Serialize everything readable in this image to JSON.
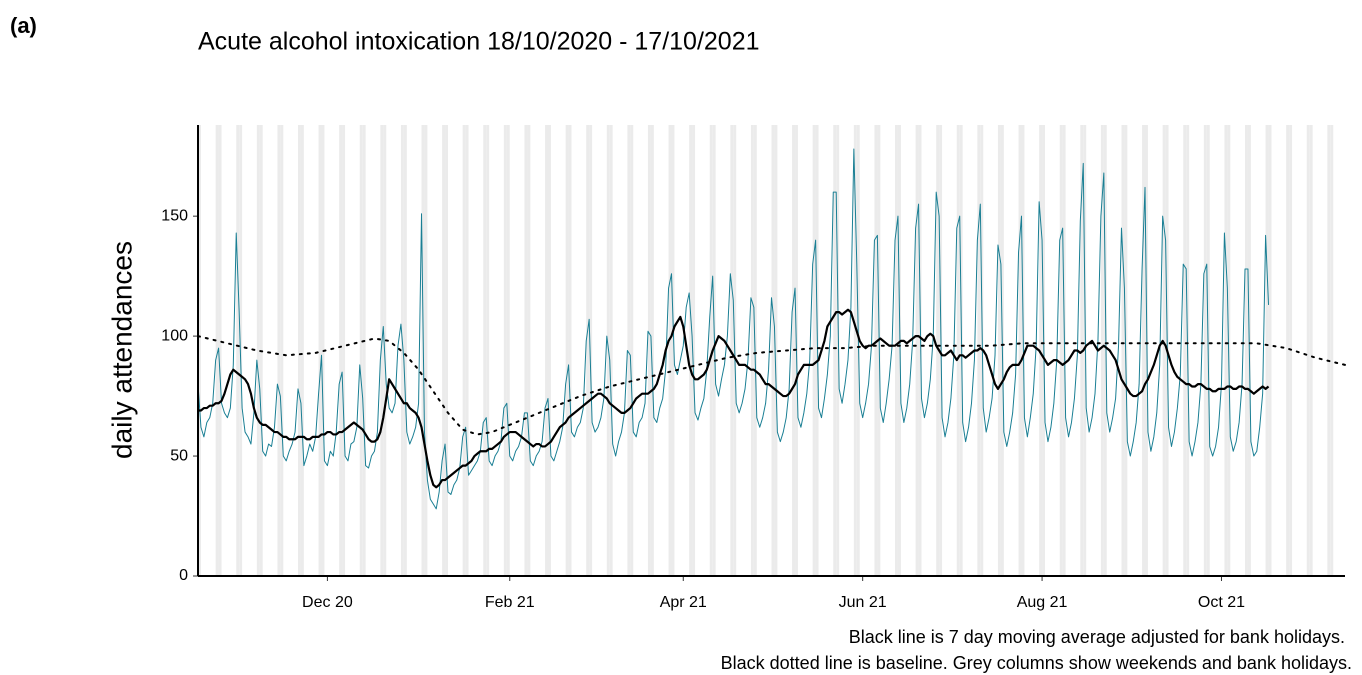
{
  "panel_label": "(a)",
  "chart_data": {
    "type": "line",
    "title": "Acute alcohol intoxication 18/10/2020 - 17/10/2021",
    "y_label": "daily attendances",
    "notes": [
      "Black line is 7 day moving average adjusted for bank holidays.",
      "Black dotted line is baseline. Grey columns show weekends and bank holidays."
    ],
    "weekend_shading": true,
    "xlim": [
      0,
      390
    ],
    "xticks": [
      {
        "value": 44,
        "label": "Dec 20"
      },
      {
        "value": 106,
        "label": "Feb 21"
      },
      {
        "value": 165,
        "label": "Apr 21"
      },
      {
        "value": 226,
        "label": "Jun 21"
      },
      {
        "value": 287,
        "label": "Aug 21"
      },
      {
        "value": 348,
        "label": "Oct 21"
      }
    ],
    "ylim": [
      0,
      188
    ],
    "yticks": [
      0,
      50,
      100,
      150
    ],
    "x": [
      0,
      1,
      2,
      3,
      4,
      5,
      6,
      7,
      8,
      9,
      10,
      11,
      12,
      13,
      14,
      15,
      16,
      17,
      18,
      19,
      20,
      21,
      22,
      23,
      24,
      25,
      26,
      27,
      28,
      29,
      30,
      31,
      32,
      33,
      34,
      35,
      36,
      37,
      38,
      39,
      40,
      41,
      42,
      43,
      44,
      45,
      46,
      47,
      48,
      49,
      50,
      51,
      52,
      53,
      54,
      55,
      56,
      57,
      58,
      59,
      60,
      61,
      62,
      63,
      64,
      65,
      66,
      67,
      68,
      69,
      70,
      71,
      72,
      73,
      74,
      75,
      76,
      77,
      78,
      79,
      80,
      81,
      82,
      83,
      84,
      85,
      86,
      87,
      88,
      89,
      90,
      91,
      92,
      93,
      94,
      95,
      96,
      97,
      98,
      99,
      100,
      101,
      102,
      103,
      104,
      105,
      106,
      107,
      108,
      109,
      110,
      111,
      112,
      113,
      114,
      115,
      116,
      117,
      118,
      119,
      120,
      121,
      122,
      123,
      124,
      125,
      126,
      127,
      128,
      129,
      130,
      131,
      132,
      133,
      134,
      135,
      136,
      137,
      138,
      139,
      140,
      141,
      142,
      143,
      144,
      145,
      146,
      147,
      148,
      149,
      150,
      151,
      152,
      153,
      154,
      155,
      156,
      157,
      158,
      159,
      160,
      161,
      162,
      163,
      164,
      165,
      166,
      167,
      168,
      169,
      170,
      171,
      172,
      173,
      174,
      175,
      176,
      177,
      178,
      179,
      180,
      181,
      182,
      183,
      184,
      185,
      186,
      187,
      188,
      189,
      190,
      191,
      192,
      193,
      194,
      195,
      196,
      197,
      198,
      199,
      200,
      201,
      202,
      203,
      204,
      205,
      206,
      207,
      208,
      209,
      210,
      211,
      212,
      213,
      214,
      215,
      216,
      217,
      218,
      219,
      220,
      221,
      222,
      223,
      224,
      225,
      226,
      227,
      228,
      229,
      230,
      231,
      232,
      233,
      234,
      235,
      236,
      237,
      238,
      239,
      240,
      241,
      242,
      243,
      244,
      245,
      246,
      247,
      248,
      249,
      250,
      251,
      252,
      253,
      254,
      255,
      256,
      257,
      258,
      259,
      260,
      261,
      262,
      263,
      264,
      265,
      266,
      267,
      268,
      269,
      270,
      271,
      272,
      273,
      274,
      275,
      276,
      277,
      278,
      279,
      280,
      281,
      282,
      283,
      284,
      285,
      286,
      287,
      288,
      289,
      290,
      291,
      292,
      293,
      294,
      295,
      296,
      297,
      298,
      299,
      300,
      301,
      302,
      303,
      304,
      305,
      306,
      307,
      308,
      309,
      310,
      311,
      312,
      313,
      314,
      315,
      316,
      317,
      318,
      319,
      320,
      321,
      322,
      323,
      324,
      325,
      326,
      327,
      328,
      329,
      330,
      331,
      332,
      333,
      334,
      335,
      336,
      337,
      338,
      339,
      340,
      341,
      342,
      343,
      344,
      345,
      346,
      347,
      348,
      349,
      350,
      351,
      352,
      353,
      354,
      355,
      356,
      357,
      358,
      359,
      360,
      361,
      362,
      363,
      364
    ],
    "series": [
      {
        "color": "#1a7f94",
        "width": 1,
        "dash": "none",
        "values": [
          80,
          62,
          58,
          64,
          66,
          72,
          90,
          95,
          72,
          68,
          66,
          70,
          88,
          143,
          110,
          70,
          60,
          58,
          55,
          68,
          90,
          78,
          52,
          50,
          55,
          54,
          62,
          80,
          75,
          50,
          48,
          52,
          55,
          60,
          78,
          72,
          46,
          50,
          55,
          52,
          58,
          76,
          92,
          48,
          46,
          52,
          50,
          60,
          80,
          85,
          50,
          48,
          55,
          56,
          62,
          88,
          74,
          46,
          45,
          50,
          52,
          60,
          90,
          104,
          80,
          70,
          68,
          72,
          96,
          105,
          90,
          60,
          55,
          58,
          62,
          72,
          151,
          60,
          40,
          32,
          30,
          28,
          35,
          48,
          55,
          35,
          34,
          38,
          40,
          45,
          58,
          62,
          42,
          44,
          46,
          48,
          52,
          64,
          66,
          48,
          46,
          50,
          52,
          56,
          70,
          72,
          50,
          48,
          52,
          54,
          58,
          68,
          68,
          48,
          46,
          50,
          52,
          56,
          70,
          74,
          50,
          48,
          52,
          56,
          62,
          80,
          88,
          60,
          58,
          62,
          64,
          70,
          98,
          107,
          64,
          60,
          62,
          66,
          74,
          100,
          90,
          55,
          50,
          56,
          60,
          68,
          94,
          92,
          60,
          58,
          64,
          66,
          72,
          102,
          100,
          66,
          64,
          70,
          74,
          86,
          120,
          126,
          88,
          84,
          90,
          96,
          112,
          118,
          100,
          68,
          65,
          70,
          74,
          86,
          108,
          125,
          80,
          75,
          82,
          88,
          100,
          126,
          115,
          72,
          68,
          72,
          78,
          90,
          116,
          112,
          66,
          62,
          66,
          72,
          86,
          116,
          104,
          60,
          56,
          60,
          66,
          78,
          110,
          120,
          66,
          62,
          68,
          76,
          90,
          130,
          140,
          70,
          66,
          74,
          84,
          100,
          160,
          160,
          78,
          72,
          80,
          90,
          112,
          178,
          130,
          72,
          66,
          72,
          80,
          96,
          140,
          142,
          70,
          64,
          72,
          82,
          96,
          140,
          150,
          72,
          64,
          70,
          80,
          98,
          145,
          155,
          74,
          66,
          72,
          82,
          100,
          160,
          150,
          66,
          58,
          64,
          74,
          92,
          145,
          150,
          64,
          56,
          62,
          72,
          90,
          140,
          155,
          70,
          60,
          66,
          74,
          92,
          138,
          130,
          60,
          54,
          60,
          68,
          84,
          135,
          150,
          66,
          58,
          66,
          76,
          96,
          156,
          140,
          64,
          56,
          62,
          72,
          90,
          140,
          145,
          66,
          58,
          64,
          74,
          92,
          148,
          172,
          70,
          60,
          66,
          76,
          98,
          150,
          168,
          68,
          60,
          66,
          74,
          96,
          145,
          120,
          56,
          50,
          56,
          64,
          80,
          128,
          162,
          60,
          52,
          58,
          68,
          88,
          150,
          140,
          62,
          54,
          60,
          70,
          84,
          130,
          128,
          56,
          50,
          56,
          64,
          80,
          126,
          130,
          54,
          50,
          54,
          62,
          80,
          143,
          120,
          58,
          52,
          56,
          64,
          80,
          128,
          128,
          56,
          50,
          52,
          62,
          76,
          142,
          113
        ]
      },
      {
        "color": "#000000",
        "width": 2.2,
        "dash": "none",
        "values": [
          69,
          69,
          70,
          70,
          71,
          71,
          72,
          72,
          73,
          76,
          80,
          84,
          86,
          85,
          84,
          83,
          82,
          80,
          76,
          70,
          66,
          64,
          63,
          63,
          62,
          61,
          60,
          60,
          59,
          58,
          58,
          57,
          57,
          57,
          58,
          58,
          58,
          57,
          57,
          58,
          58,
          58,
          59,
          59,
          60,
          60,
          59,
          59,
          60,
          60,
          61,
          62,
          63,
          64,
          63,
          62,
          61,
          59,
          57,
          56,
          56,
          57,
          60,
          66,
          74,
          82,
          80,
          78,
          76,
          74,
          72,
          72,
          70,
          69,
          68,
          66,
          62,
          55,
          48,
          42,
          38,
          37,
          38,
          40,
          40,
          41,
          42,
          43,
          44,
          45,
          46,
          46,
          47,
          48,
          50,
          51,
          52,
          52,
          52,
          53,
          53,
          54,
          55,
          56,
          58,
          59,
          60,
          60,
          60,
          59,
          58,
          57,
          56,
          55,
          54,
          55,
          55,
          54,
          54,
          55,
          56,
          58,
          60,
          62,
          63,
          64,
          66,
          67,
          68,
          69,
          70,
          71,
          72,
          73,
          74,
          75,
          76,
          76,
          75,
          74,
          72,
          71,
          70,
          69,
          68,
          68,
          69,
          70,
          72,
          74,
          75,
          76,
          76,
          76,
          77,
          78,
          80,
          84,
          88,
          94,
          98,
          100,
          104,
          106,
          108,
          104,
          96,
          88,
          84,
          82,
          82,
          83,
          84,
          86,
          90,
          94,
          97,
          100,
          99,
          98,
          96,
          94,
          92,
          90,
          88,
          88,
          88,
          87,
          86,
          86,
          85,
          84,
          82,
          80,
          80,
          79,
          78,
          77,
          76,
          75,
          75,
          76,
          78,
          80,
          84,
          86,
          88,
          88,
          88,
          88,
          89,
          90,
          94,
          98,
          104,
          106,
          108,
          110,
          110,
          109,
          110,
          111,
          110,
          106,
          102,
          98,
          96,
          95,
          96,
          96,
          97,
          98,
          99,
          98,
          97,
          96,
          96,
          96,
          97,
          98,
          98,
          97,
          98,
          99,
          100,
          100,
          99,
          98,
          100,
          101,
          100,
          96,
          94,
          92,
          92,
          93,
          94,
          92,
          90,
          92,
          92,
          91,
          92,
          93,
          94,
          94,
          95,
          94,
          92,
          88,
          84,
          80,
          78,
          80,
          82,
          85,
          87,
          88,
          88,
          88,
          90,
          93,
          96,
          96,
          96,
          95,
          94,
          92,
          90,
          88,
          89,
          90,
          90,
          89,
          88,
          89,
          90,
          92,
          94,
          94,
          93,
          94,
          96,
          97,
          98,
          96,
          94,
          95,
          96,
          95,
          94,
          92,
          90,
          86,
          82,
          80,
          78,
          76,
          75,
          75,
          76,
          77,
          80,
          82,
          85,
          88,
          92,
          96,
          98,
          96,
          92,
          88,
          85,
          83,
          82,
          81,
          80,
          80,
          79,
          79,
          80,
          80,
          79,
          78,
          78,
          77,
          77,
          78,
          78,
          78,
          79,
          79,
          78,
          78,
          79,
          79,
          78,
          78,
          77,
          76,
          77,
          78,
          79,
          78,
          79
        ]
      },
      {
        "color": "#000000",
        "width": 2,
        "dash": "2 6",
        "x": [
          0,
          10,
          20,
          30,
          40,
          50,
          60,
          65,
          70,
          75,
          80,
          85,
          90,
          95,
          100,
          110,
          120,
          130,
          140,
          150,
          160,
          170,
          180,
          190,
          200,
          210,
          220,
          230,
          240,
          250,
          260,
          270,
          280,
          290,
          300,
          310,
          320,
          330,
          340,
          350,
          360,
          370,
          380,
          390
        ],
        "values": [
          100,
          97,
          94,
          92,
          93,
          96,
          99,
          98,
          93,
          86,
          77,
          68,
          61,
          59,
          60,
          65,
          70,
          75,
          79,
          82,
          85,
          88,
          91,
          93,
          94,
          95,
          95,
          96,
          96,
          96,
          96,
          96,
          97,
          97,
          97,
          97,
          97,
          97,
          97,
          97,
          97,
          95,
          91,
          88
        ]
      }
    ]
  }
}
